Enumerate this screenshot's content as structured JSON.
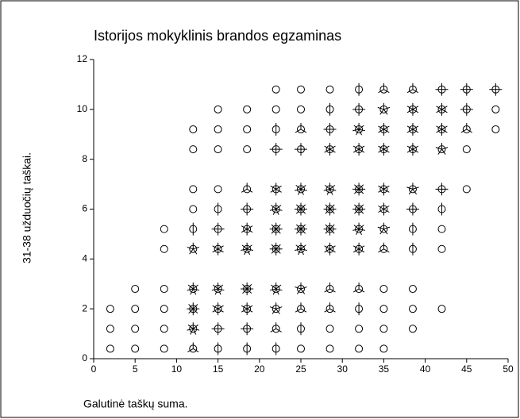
{
  "chart_data": {
    "type": "sunflower",
    "title": "Istorijos mokyklinis brandos egzaminas",
    "x_label": "Galutinė taškų suma.",
    "y_label": "31-38 užduočių taškai.",
    "xlim": [
      0,
      50
    ],
    "xticks": [
      0,
      5,
      10,
      15,
      20,
      25,
      30,
      35,
      40,
      45,
      50
    ],
    "ylim": [
      0,
      12
    ],
    "yticks": [
      0,
      2,
      4,
      6,
      8,
      10,
      12
    ],
    "color": "#000000",
    "x": [
      22,
      25,
      28.5,
      32,
      35,
      38.5,
      42,
      45,
      48.5,
      15,
      18.5,
      22,
      25,
      28.5,
      32,
      35,
      38.5,
      42,
      45,
      48.5,
      12,
      15,
      18.5,
      22,
      25,
      28.5,
      32,
      35,
      38.5,
      42,
      45,
      48.5,
      12,
      15,
      18.5,
      22,
      25,
      28.5,
      32,
      35,
      38.5,
      42,
      45,
      12,
      15,
      18.5,
      22,
      25,
      28.5,
      32,
      35,
      38.5,
      42,
      45,
      12,
      15,
      18.5,
      22,
      25,
      28.5,
      32,
      35,
      38.5,
      42,
      8.5,
      12,
      15,
      18.5,
      22,
      25,
      28.5,
      32,
      35,
      38.5,
      42,
      8.5,
      12,
      15,
      18.5,
      22,
      25,
      28.5,
      32,
      35,
      38.5,
      42,
      5,
      8.5,
      12,
      15,
      18.5,
      22,
      25,
      28.5,
      32,
      35,
      38.5,
      2,
      5,
      8.5,
      12,
      15,
      18.5,
      22,
      25,
      28.5,
      32,
      35,
      38.5,
      42,
      2,
      5,
      8.5,
      12,
      15,
      18.5,
      22,
      25,
      28.5,
      32,
      35,
      38.5,
      2,
      5,
      8.5,
      12,
      15,
      18.5,
      22,
      25,
      28.5,
      32,
      35
    ],
    "y": [
      10.8,
      10.8,
      10.8,
      10.8,
      10.8,
      10.8,
      10.8,
      10.8,
      10.8,
      10,
      10,
      10,
      10,
      10,
      10,
      10,
      10,
      10,
      10,
      10,
      9.2,
      9.2,
      9.2,
      9.2,
      9.2,
      9.2,
      9.2,
      9.2,
      9.2,
      9.2,
      9.2,
      9.2,
      8.4,
      8.4,
      8.4,
      8.4,
      8.4,
      8.4,
      8.4,
      8.4,
      8.4,
      8.4,
      8.4,
      6.8,
      6.8,
      6.8,
      6.8,
      6.8,
      6.8,
      6.8,
      6.8,
      6.8,
      6.8,
      6.8,
      6,
      6,
      6,
      6,
      6,
      6,
      6,
      6,
      6,
      6,
      5.2,
      5.2,
      5.2,
      5.2,
      5.2,
      5.2,
      5.2,
      5.2,
      5.2,
      5.2,
      5.2,
      4.4,
      4.4,
      4.4,
      4.4,
      4.4,
      4.4,
      4.4,
      4.4,
      4.4,
      4.4,
      4.4,
      2.8,
      2.8,
      2.8,
      2.8,
      2.8,
      2.8,
      2.8,
      2.8,
      2.8,
      2.8,
      2.8,
      2,
      2,
      2,
      2,
      2,
      2,
      2,
      2,
      2,
      2,
      2,
      2,
      2,
      1.2,
      1.2,
      1.2,
      1.2,
      1.2,
      1.2,
      1.2,
      1.2,
      1.2,
      1.2,
      1.2,
      1.2,
      0.4,
      0.4,
      0.4,
      0.4,
      0.4,
      0.4,
      0.4,
      0.4,
      0.4,
      0.4,
      0.4
    ],
    "counts": [
      1,
      1,
      1,
      2,
      3,
      3,
      4,
      4,
      4,
      1,
      1,
      1,
      1,
      2,
      4,
      5,
      6,
      6,
      4,
      1,
      1,
      1,
      1,
      2,
      3,
      4,
      7,
      6,
      6,
      6,
      3,
      1,
      1,
      1,
      1,
      4,
      4,
      6,
      6,
      6,
      6,
      5,
      1,
      1,
      1,
      3,
      6,
      7,
      7,
      8,
      6,
      5,
      4,
      1,
      1,
      2,
      4,
      7,
      8,
      8,
      8,
      6,
      4,
      2,
      1,
      2,
      4,
      6,
      8,
      8,
      8,
      7,
      5,
      2,
      1,
      1,
      5,
      6,
      7,
      8,
      7,
      6,
      6,
      3,
      2,
      1,
      1,
      1,
      7,
      7,
      8,
      7,
      5,
      3,
      3,
      1,
      1,
      1,
      1,
      1,
      8,
      6,
      6,
      5,
      3,
      3,
      2,
      1,
      1,
      1,
      1,
      1,
      1,
      7,
      4,
      4,
      3,
      2,
      1,
      1,
      1,
      1,
      1,
      1,
      1,
      3,
      2,
      2,
      2,
      1,
      1,
      1,
      1
    ]
  }
}
